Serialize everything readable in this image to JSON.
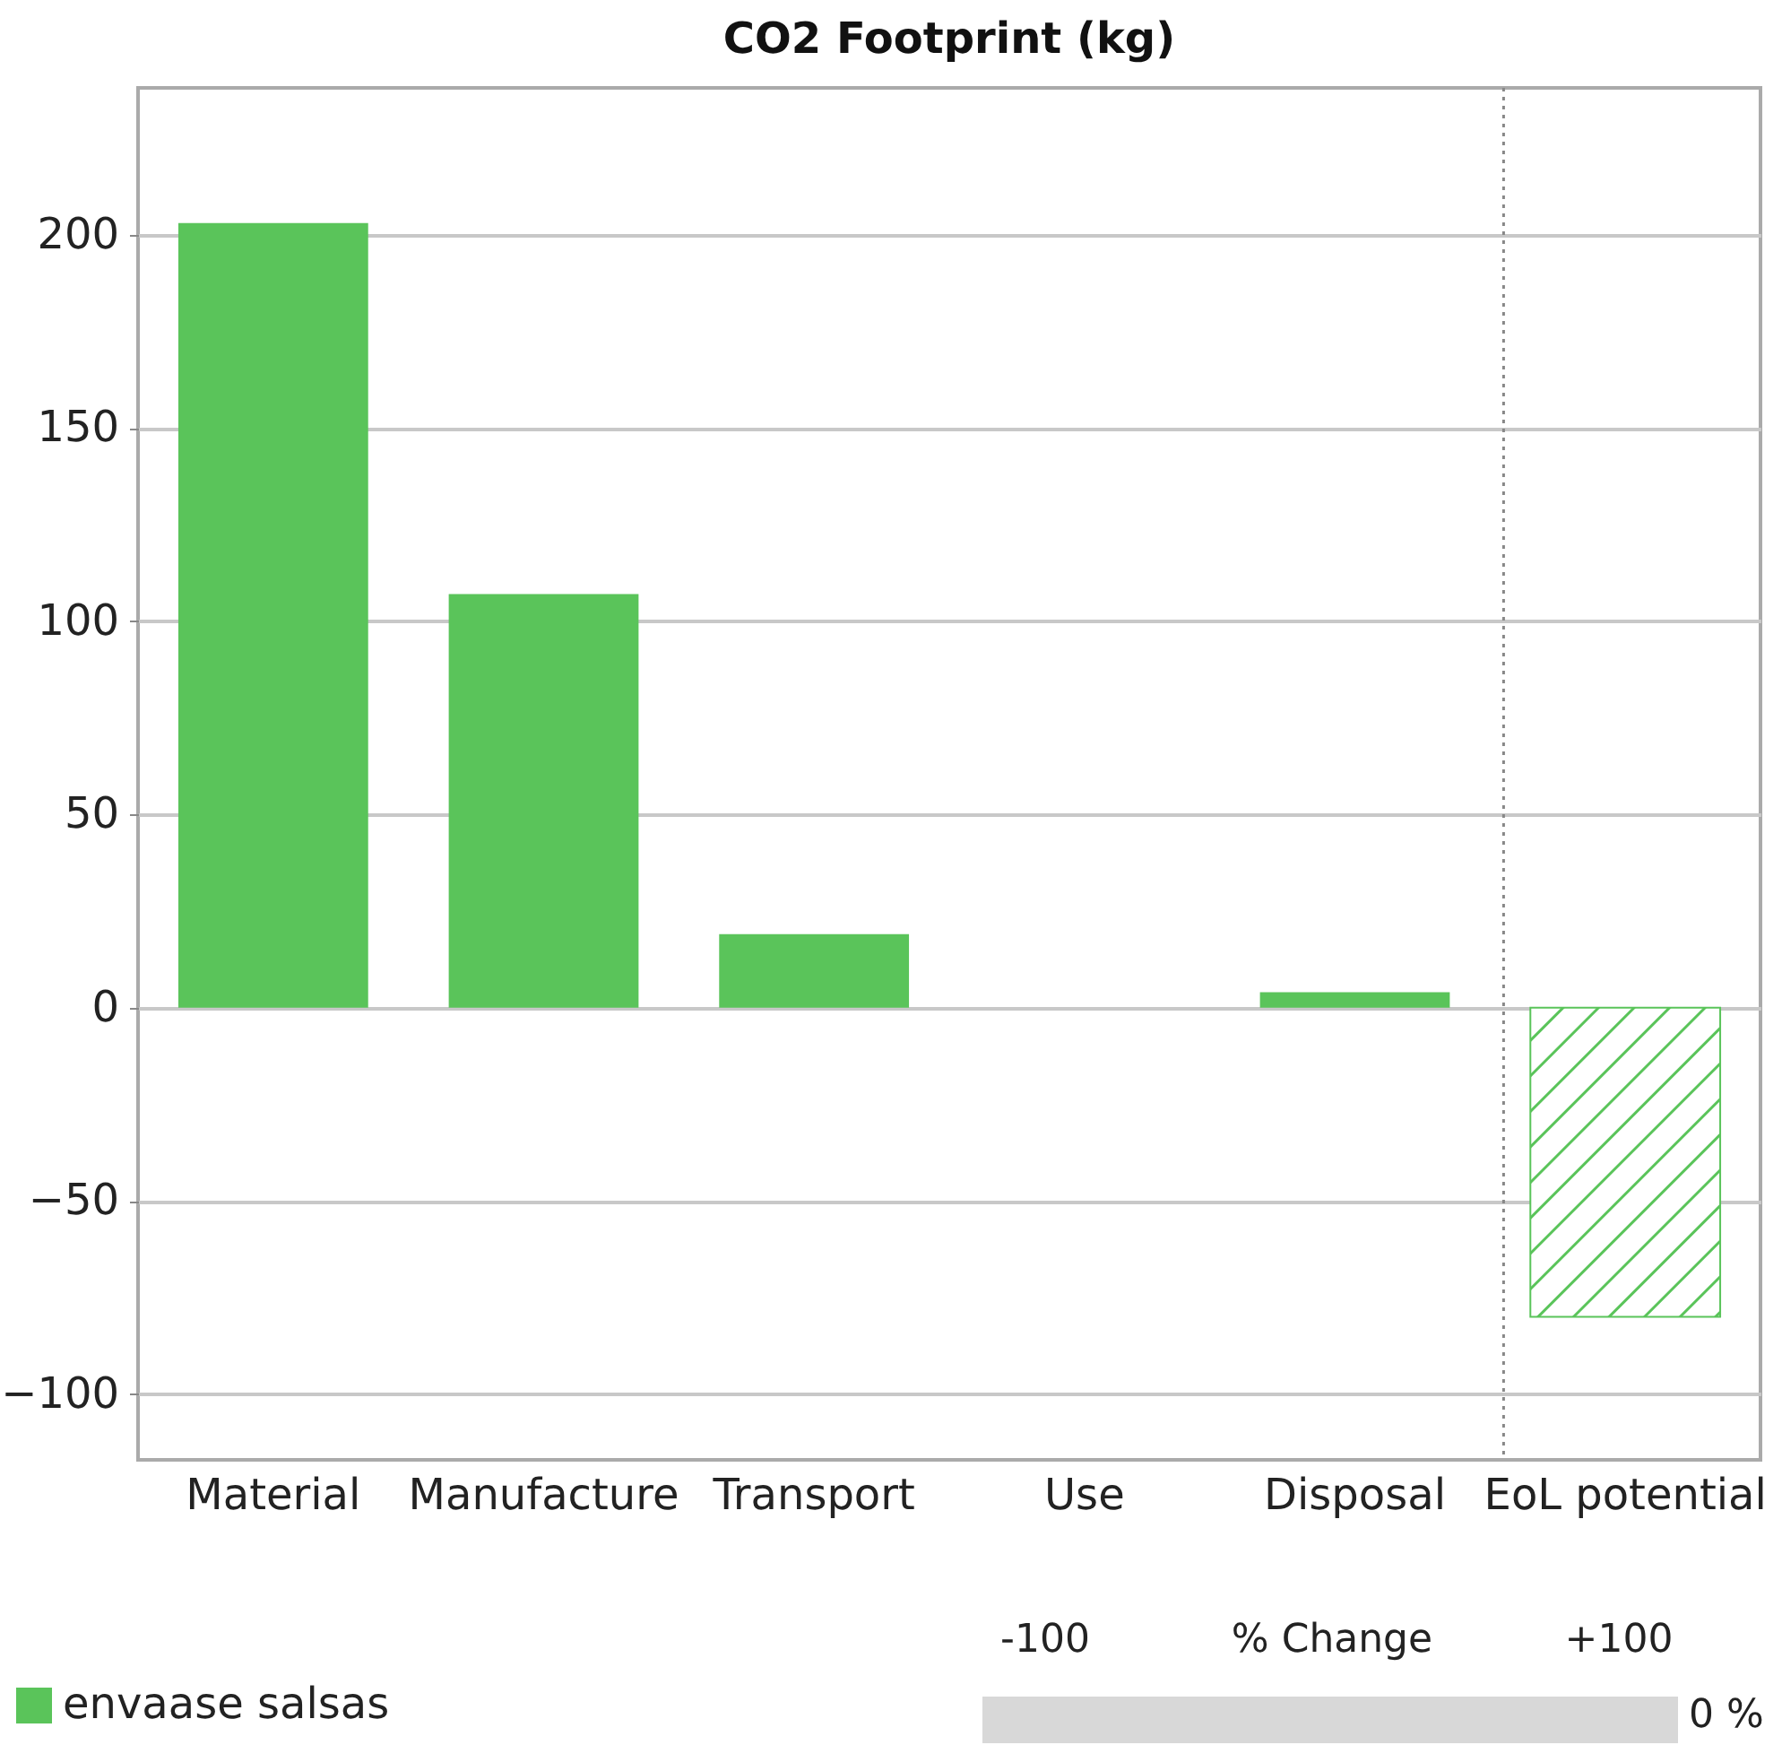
{
  "chart_data": {
    "type": "bar",
    "title": "CO2 Footprint (kg)",
    "categories": [
      "Material",
      "Manufacture",
      "Transport",
      "Use",
      "Disposal",
      "EoL potential"
    ],
    "series": [
      {
        "name": "envaase salsas",
        "color": "#5ac45a",
        "values": [
          203,
          107,
          19,
          0,
          4,
          -80
        ]
      }
    ],
    "ylim": [
      -117,
      238
    ],
    "yticks": [
      -100,
      -50,
      0,
      50,
      100,
      150,
      200
    ],
    "grid": "y",
    "legend": "bottom left",
    "ref_lines": [
      {
        "axis": "x",
        "value": "EoL potential",
        "line_style": "dotted",
        "color": "#888888"
      }
    ],
    "annotations": [
      "-100",
      "% Change",
      "+100",
      "0 %"
    ]
  }
}
